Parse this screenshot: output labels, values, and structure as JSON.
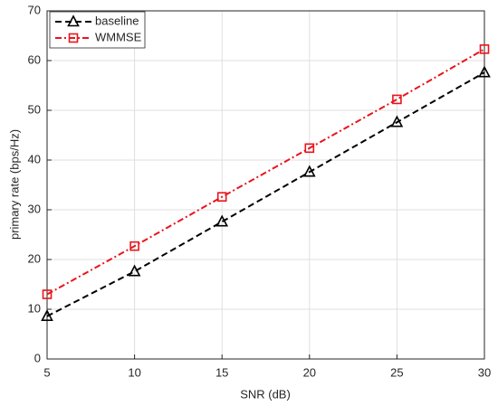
{
  "chart_data": {
    "type": "line",
    "x_label": "SNR (dB)",
    "y_label": "primary rate (bps/Hz)",
    "x": [
      5,
      10,
      15,
      20,
      25,
      30
    ],
    "series": [
      {
        "name": "baseline",
        "color": "#000000",
        "marker": "triangle",
        "linestyle": "dashed",
        "values": [
          8.6,
          17.6,
          27.6,
          37.6,
          47.6,
          57.6
        ]
      },
      {
        "name": "WMMSE",
        "color": "#e8141c",
        "marker": "square",
        "linestyle": "dashdot",
        "values": [
          13,
          22.7,
          32.6,
          42.4,
          52.2,
          62.3
        ]
      }
    ],
    "xlim": [
      5,
      30
    ],
    "xticks": [
      5,
      10,
      15,
      20,
      25,
      30
    ],
    "ylim": [
      0,
      70
    ],
    "yticks": [
      0,
      10,
      20,
      30,
      40,
      50,
      60,
      70
    ],
    "grid": true,
    "legend": "upper left"
  }
}
